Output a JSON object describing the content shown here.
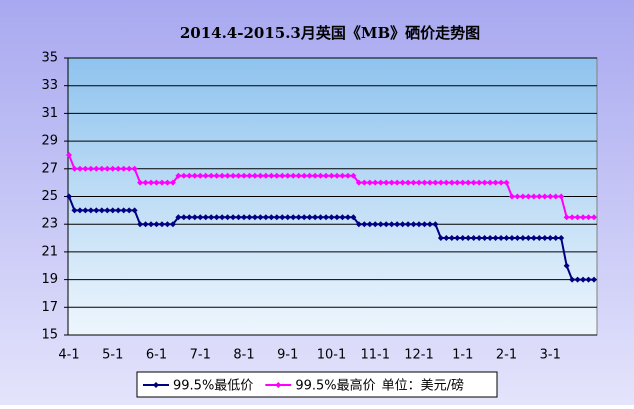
{
  "chart_data": {
    "type": "line",
    "title": "2014.4-2015.3月英国《MB》硒价走势图",
    "unit": "单位：美元/磅",
    "categories": [
      "4-1",
      null,
      null,
      null,
      null,
      null,
      null,
      null,
      "5-1",
      null,
      null,
      null,
      null,
      null,
      null,
      null,
      "6-1",
      null,
      null,
      null,
      null,
      null,
      null,
      null,
      "7-1",
      null,
      null,
      null,
      null,
      null,
      null,
      null,
      "8-1",
      null,
      null,
      null,
      null,
      null,
      null,
      null,
      "9-1",
      null,
      null,
      null,
      null,
      null,
      null,
      null,
      "10-1",
      null,
      null,
      null,
      null,
      null,
      null,
      null,
      "11-1",
      null,
      null,
      null,
      null,
      null,
      null,
      null,
      "12-1",
      null,
      null,
      null,
      null,
      null,
      null,
      null,
      "1-1",
      null,
      null,
      null,
      null,
      null,
      null,
      null,
      "2-1",
      null,
      null,
      null,
      null,
      null,
      null,
      null,
      "3-1",
      null,
      null,
      null,
      null,
      null,
      null,
      null,
      null
    ],
    "series": [
      {
        "name": "99.5%最低价",
        "color": "#000080",
        "values": [
          25,
          24,
          24,
          24,
          24,
          24,
          24,
          24,
          24,
          24,
          24,
          24,
          24,
          23,
          23,
          23,
          23,
          23,
          23,
          23,
          23.5,
          23.5,
          23.5,
          23.5,
          23.5,
          23.5,
          23.5,
          23.5,
          23.5,
          23.5,
          23.5,
          23.5,
          23.5,
          23.5,
          23.5,
          23.5,
          23.5,
          23.5,
          23.5,
          23.5,
          23.5,
          23.5,
          23.5,
          23.5,
          23.5,
          23.5,
          23.5,
          23.5,
          23.5,
          23.5,
          23.5,
          23.5,
          23.5,
          23,
          23,
          23,
          23,
          23,
          23,
          23,
          23,
          23,
          23,
          23,
          23,
          23,
          23,
          23,
          22,
          22,
          22,
          22,
          22,
          22,
          22,
          22,
          22,
          22,
          22,
          22,
          22,
          22,
          22,
          22,
          22,
          22,
          22,
          22,
          22,
          22,
          22,
          20,
          19,
          19,
          19,
          19,
          19
        ]
      },
      {
        "name": "99.5%最高价",
        "color": "#ff00ff",
        "values": [
          28,
          27,
          27,
          27,
          27,
          27,
          27,
          27,
          27,
          27,
          27,
          27,
          27,
          26,
          26,
          26,
          26,
          26,
          26,
          26,
          26.5,
          26.5,
          26.5,
          26.5,
          26.5,
          26.5,
          26.5,
          26.5,
          26.5,
          26.5,
          26.5,
          26.5,
          26.5,
          26.5,
          26.5,
          26.5,
          26.5,
          26.5,
          26.5,
          26.5,
          26.5,
          26.5,
          26.5,
          26.5,
          26.5,
          26.5,
          26.5,
          26.5,
          26.5,
          26.5,
          26.5,
          26.5,
          26.5,
          26,
          26,
          26,
          26,
          26,
          26,
          26,
          26,
          26,
          26,
          26,
          26,
          26,
          26,
          26,
          26,
          26,
          26,
          26,
          26,
          26,
          26,
          26,
          26,
          26,
          26,
          26,
          26,
          25,
          25,
          25,
          25,
          25,
          25,
          25,
          25,
          25,
          25,
          23.5,
          23.5,
          23.5,
          23.5,
          23.5,
          23.5
        ]
      }
    ],
    "ylim": [
      15,
      35
    ],
    "yticks": [
      15,
      17,
      19,
      21,
      23,
      25,
      27,
      29,
      31,
      33,
      35
    ],
    "grid": true
  }
}
